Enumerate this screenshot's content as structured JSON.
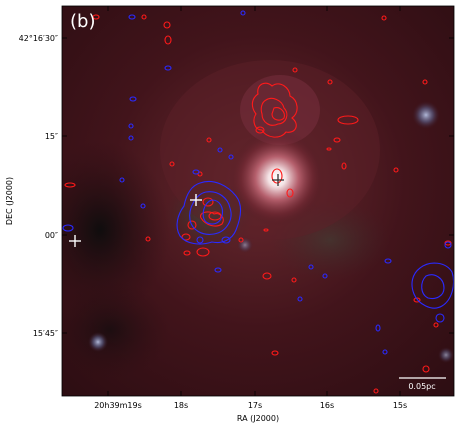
{
  "panel_label": "(b)",
  "axes": {
    "xlabel": "RA (J2000)",
    "ylabel": "DEC (J2000)",
    "x_ticks": [
      "20h39m19s",
      "18s",
      "17s",
      "16s",
      "15s"
    ],
    "y_ticks": [
      "42°16′30″",
      "15″",
      "00″",
      "15′45″"
    ]
  },
  "scale_bar": {
    "label": "0.05pc"
  },
  "colors": {
    "contour_red": "#ff1a1a",
    "contour_blue": "#2a2aff",
    "marker": "#ffffff",
    "background": "#3a1016"
  },
  "markers": [
    {
      "name": "cross-1",
      "color": "white"
    },
    {
      "name": "cross-2",
      "color": "white"
    },
    {
      "name": "cross-3",
      "color": "dark"
    }
  ]
}
